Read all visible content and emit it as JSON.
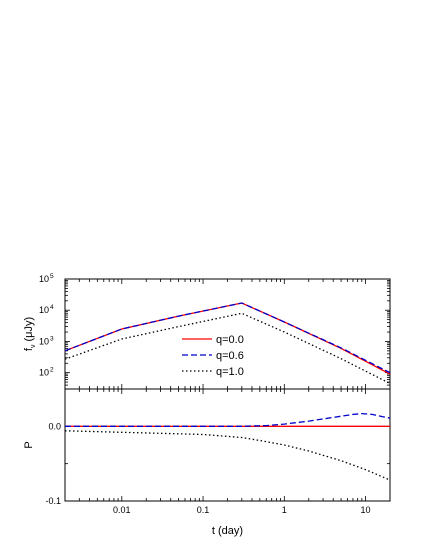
{
  "chart_data": [
    {
      "type": "line",
      "panel": "top",
      "ylabel_main": "f",
      "ylabel_sub": "ν",
      "ylabel_unit": "(μJy)",
      "x_scale": "log",
      "y_scale": "log",
      "xlim": [
        0.002,
        20
      ],
      "ylim": [
        30,
        100000
      ],
      "y_ticks": [
        {
          "value": 100,
          "base": "10",
          "exp": "2"
        },
        {
          "value": 1000,
          "base": "10",
          "exp": "3"
        },
        {
          "value": 10000,
          "base": "10",
          "exp": "4"
        },
        {
          "value": 100000,
          "base": "10",
          "exp": "5"
        }
      ],
      "series": [
        {
          "name": "q=0.0",
          "color": "#ff0000",
          "style": "solid",
          "x": [
            0.002,
            0.01,
            0.05,
            0.3,
            1,
            5,
            20
          ],
          "y": [
            500,
            2500,
            6500,
            17000,
            4200,
            600,
            90
          ]
        },
        {
          "name": "q=0.6",
          "color": "#0000cc",
          "style": "dashed",
          "x": [
            0.002,
            0.01,
            0.05,
            0.3,
            1,
            5,
            20
          ],
          "y": [
            500,
            2500,
            6500,
            17000,
            4200,
            620,
            100
          ]
        },
        {
          "name": "q=1.0",
          "color": "#000000",
          "style": "dotted",
          "x": [
            0.002,
            0.01,
            0.05,
            0.3,
            1,
            5,
            20
          ],
          "y": [
            270,
            1200,
            3000,
            8000,
            2000,
            280,
            45
          ]
        }
      ],
      "legend": {
        "position": "lower-center",
        "entries": [
          "q=0.0",
          "q=0.6",
          "q=1.0"
        ]
      }
    },
    {
      "type": "line",
      "panel": "bottom",
      "ylabel": "P",
      "xlabel": "t (day)",
      "x_scale": "log",
      "xlim": [
        0.002,
        20
      ],
      "ylim": [
        -0.1,
        0.05
      ],
      "y_ticks": [
        {
          "value": 0.0,
          "label": "0.0"
        },
        {
          "value": -0.1,
          "label": "-0.1"
        }
      ],
      "x_ticks": [
        {
          "value": 0.01,
          "label": "0.01"
        },
        {
          "value": 0.1,
          "label": "0.1"
        },
        {
          "value": 1,
          "label": "1"
        },
        {
          "value": 10,
          "label": "10"
        }
      ],
      "series": [
        {
          "name": "q=0.0",
          "color": "#ff0000",
          "style": "solid",
          "x": [
            0.002,
            20
          ],
          "y": [
            0.0,
            0.0
          ]
        },
        {
          "name": "q=0.6",
          "color": "#0000cc",
          "style": "dashed",
          "x": [
            0.002,
            0.1,
            0.3,
            0.6,
            1,
            2,
            4,
            7,
            9,
            12,
            16,
            20
          ],
          "y": [
            0.0,
            0.0,
            0.0,
            0.001,
            0.003,
            0.007,
            0.012,
            0.016,
            0.017,
            0.016,
            0.013,
            0.011
          ]
        },
        {
          "name": "q=1.0",
          "color": "#000000",
          "style": "dotted",
          "x": [
            0.002,
            0.01,
            0.05,
            0.1,
            0.3,
            0.5,
            1,
            2,
            5,
            10,
            20
          ],
          "y": [
            -0.006,
            -0.008,
            -0.01,
            -0.011,
            -0.015,
            -0.019,
            -0.025,
            -0.033,
            -0.046,
            -0.058,
            -0.072
          ]
        }
      ]
    }
  ]
}
